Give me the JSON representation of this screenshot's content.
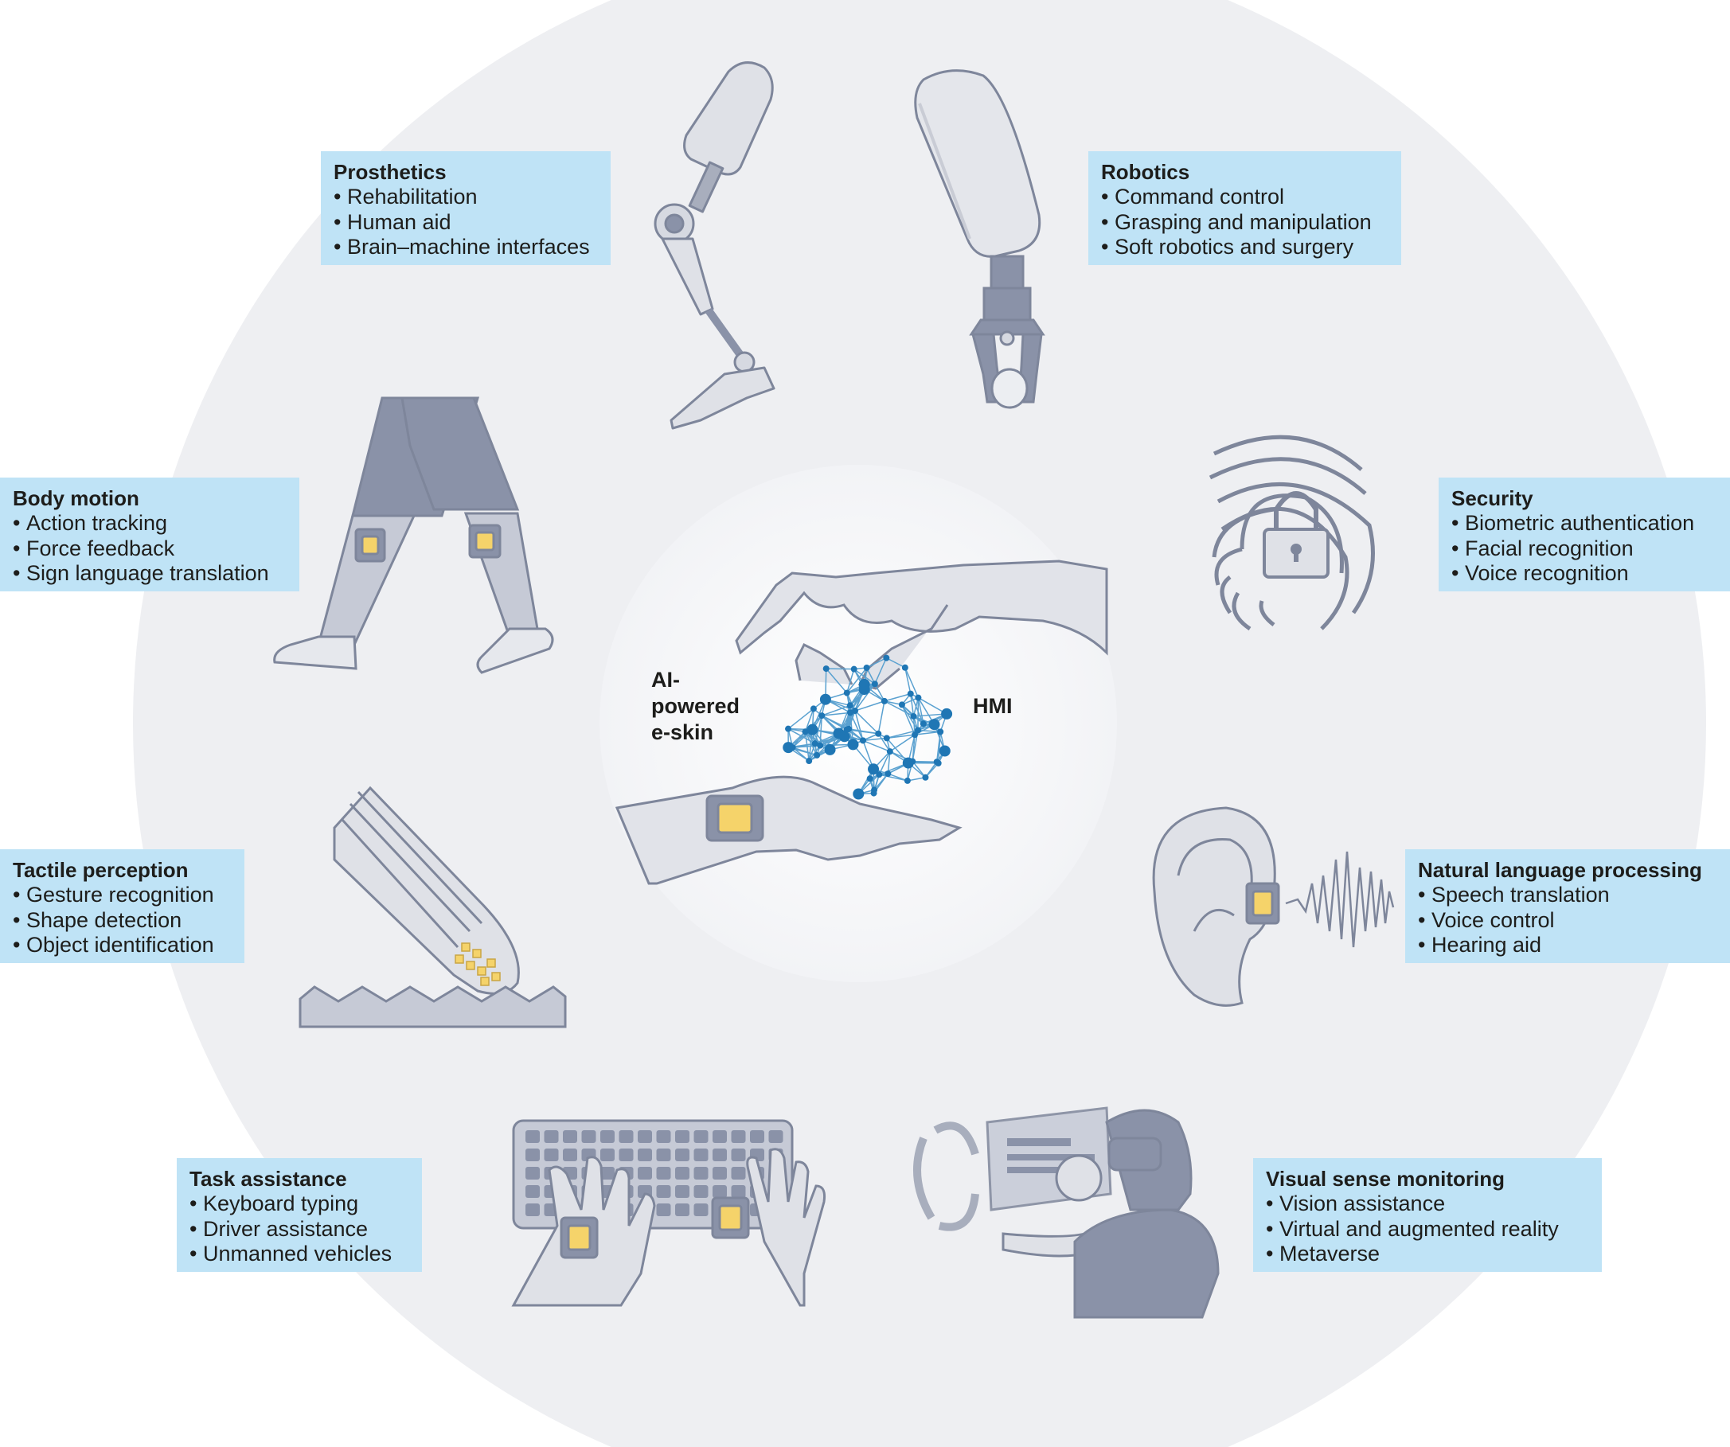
{
  "center": {
    "left_label": [
      "AI-",
      "powered",
      "e-skin"
    ],
    "right_label": "HMI"
  },
  "colors": {
    "outer_circle": "#eeeff2",
    "inner_circle": "#fafbfc",
    "label_box": "#bfe3f6",
    "figure": "#b9bdc9",
    "figure_dark": "#8a92a8",
    "sensor_pad": "#f5d36a",
    "network": "#1f76b4"
  },
  "categories": {
    "prosthetics": {
      "title": "Prosthetics",
      "items": [
        "Rehabilitation",
        "Human aid",
        "Brain–machine interfaces"
      ]
    },
    "robotics": {
      "title": "Robotics",
      "items": [
        "Command control",
        "Grasping and manipulation",
        "Soft robotics and surgery"
      ]
    },
    "body_motion": {
      "title": "Body motion",
      "items": [
        "Action tracking",
        "Force feedback",
        "Sign language translation"
      ]
    },
    "security": {
      "title": "Security",
      "items": [
        "Biometric authentication",
        "Facial recognition",
        "Voice recognition"
      ]
    },
    "tactile": {
      "title": "Tactile perception",
      "items": [
        "Gesture recognition",
        "Shape detection",
        "Object identification"
      ]
    },
    "nlp": {
      "title": "Natural language processing",
      "items": [
        "Speech translation",
        "Voice control",
        "Hearing aid"
      ]
    },
    "task": {
      "title": "Task assistance",
      "items": [
        "Keyboard typing",
        "Driver assistance",
        "Unmanned vehicles"
      ]
    },
    "visual": {
      "title": "Visual sense monitoring",
      "items": [
        "Vision assistance",
        "Virtual and augmented reality",
        "Metaverse"
      ]
    }
  },
  "icons": [
    "prosthetic-leg-icon",
    "robot-gripper-icon",
    "legs-sensor-icon",
    "fingerprint-lock-icon",
    "finger-texture-icon",
    "ear-sound-icon",
    "keyboard-hands-icon",
    "vr-user-icon",
    "hand-network-icon"
  ]
}
